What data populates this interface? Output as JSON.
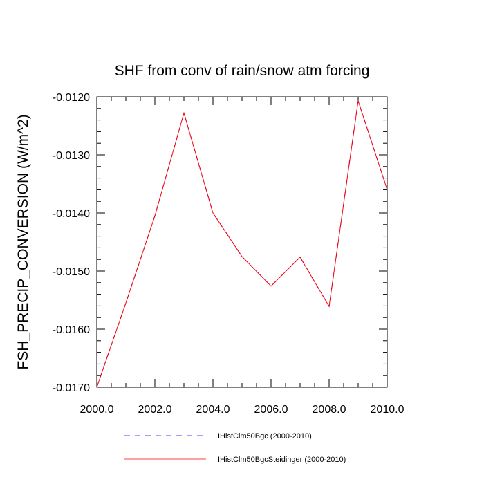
{
  "chart_data": {
    "type": "line",
    "title": "SHF from conv of rain/snow atm forcing",
    "xlabel": "",
    "ylabel": "FSH_PRECIP_CONVERSION  (W/m^2)",
    "xlim": [
      2000,
      2010
    ],
    "ylim": [
      -0.017,
      -0.012
    ],
    "x_ticks": [
      2000,
      2002,
      2004,
      2006,
      2008,
      2010
    ],
    "x_tick_labels": [
      "2000.0",
      "2002.0",
      "2004.0",
      "2006.0",
      "2008.0",
      "2010.0"
    ],
    "y_ticks": [
      -0.012,
      -0.013,
      -0.014,
      -0.015,
      -0.016,
      -0.017
    ],
    "y_tick_labels": [
      "-0.0120",
      "-0.0130",
      "-0.0140",
      "-0.0150",
      "-0.0160",
      "-0.0170"
    ],
    "grid": false,
    "legend_position": "bottom",
    "x": [
      2000,
      2001,
      2002,
      2003,
      2004,
      2005,
      2006,
      2007,
      2008,
      2009,
      2010
    ],
    "series": [
      {
        "name": "IHistClm50Bgc (2000-2010)",
        "color": "#0000ff",
        "style": "dashed",
        "values": [
          -0.017,
          -0.01555,
          -0.01405,
          -0.01228,
          -0.014,
          -0.01475,
          -0.01526,
          -0.01476,
          -0.01561,
          -0.01207,
          -0.0136
        ]
      },
      {
        "name": "IHistClm50BgcSteidinger (2000-2010)",
        "color": "#ff0000",
        "style": "solid",
        "values": [
          -0.017,
          -0.01555,
          -0.01405,
          -0.01228,
          -0.014,
          -0.01475,
          -0.01526,
          -0.01476,
          -0.01561,
          -0.01207,
          -0.0136
        ]
      }
    ]
  }
}
